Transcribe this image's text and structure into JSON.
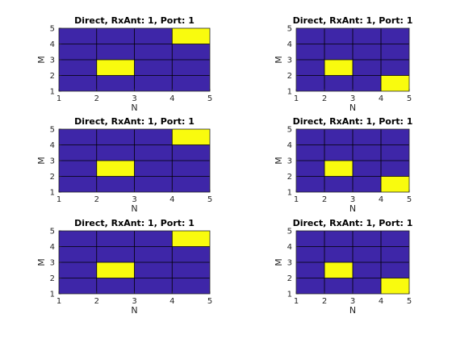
{
  "chart_data": [
    {
      "type": "heatmap",
      "title": "Direct, RxAnt: 1, Port: 1",
      "xlabel": "N",
      "ylabel": "M",
      "xlim": [
        1,
        5
      ],
      "ylim": [
        1,
        5
      ],
      "x_ticks": [
        "1",
        "2",
        "3",
        "4",
        "5"
      ],
      "y_ticks": [
        "1",
        "2",
        "3",
        "4",
        "5"
      ],
      "colors": {
        "low": "#3e26a8",
        "high": "#f9fb0e",
        "grid": "#000000"
      },
      "highlighted_cells": [
        {
          "n": [
            4,
            5
          ],
          "m": [
            4,
            5
          ]
        },
        {
          "n": [
            2,
            3
          ],
          "m": [
            2,
            3
          ]
        }
      ]
    },
    {
      "type": "heatmap",
      "title": "Direct, RxAnt: 1, Port: 1",
      "xlabel": "N",
      "ylabel": "M",
      "xlim": [
        1,
        5
      ],
      "ylim": [
        1,
        5
      ],
      "x_ticks": [
        "1",
        "2",
        "3",
        "4",
        "5"
      ],
      "y_ticks": [
        "1",
        "2",
        "3",
        "4",
        "5"
      ],
      "colors": {
        "low": "#3e26a8",
        "high": "#f9fb0e",
        "grid": "#000000"
      },
      "highlighted_cells": [
        {
          "n": [
            2,
            3
          ],
          "m": [
            2,
            3
          ]
        },
        {
          "n": [
            4,
            5
          ],
          "m": [
            1,
            2
          ]
        }
      ]
    },
    {
      "type": "heatmap",
      "title": "Direct, RxAnt: 1, Port: 1",
      "xlabel": "N",
      "ylabel": "M",
      "xlim": [
        1,
        5
      ],
      "ylim": [
        1,
        5
      ],
      "x_ticks": [
        "1",
        "2",
        "3",
        "4",
        "5"
      ],
      "y_ticks": [
        "1",
        "2",
        "3",
        "4",
        "5"
      ],
      "colors": {
        "low": "#3e26a8",
        "high": "#f9fb0e",
        "grid": "#000000"
      },
      "highlighted_cells": [
        {
          "n": [
            4,
            5
          ],
          "m": [
            4,
            5
          ]
        },
        {
          "n": [
            2,
            3
          ],
          "m": [
            2,
            3
          ]
        }
      ]
    },
    {
      "type": "heatmap",
      "title": "Direct, RxAnt: 1, Port: 1",
      "xlabel": "N",
      "ylabel": "M",
      "xlim": [
        1,
        5
      ],
      "ylim": [
        1,
        5
      ],
      "x_ticks": [
        "1",
        "2",
        "3",
        "4",
        "5"
      ],
      "y_ticks": [
        "1",
        "2",
        "3",
        "4",
        "5"
      ],
      "colors": {
        "low": "#3e26a8",
        "high": "#f9fb0e",
        "grid": "#000000"
      },
      "highlighted_cells": [
        {
          "n": [
            2,
            3
          ],
          "m": [
            2,
            3
          ]
        },
        {
          "n": [
            4,
            5
          ],
          "m": [
            1,
            2
          ]
        }
      ]
    },
    {
      "type": "heatmap",
      "title": "Direct, RxAnt: 1, Port: 1",
      "xlabel": "N",
      "ylabel": "M",
      "xlim": [
        1,
        5
      ],
      "ylim": [
        1,
        5
      ],
      "x_ticks": [
        "1",
        "2",
        "3",
        "4",
        "5"
      ],
      "y_ticks": [
        "1",
        "2",
        "3",
        "4",
        "5"
      ],
      "colors": {
        "low": "#3e26a8",
        "high": "#f9fb0e",
        "grid": "#000000"
      },
      "highlighted_cells": [
        {
          "n": [
            4,
            5
          ],
          "m": [
            4,
            5
          ]
        },
        {
          "n": [
            2,
            3
          ],
          "m": [
            2,
            3
          ]
        }
      ]
    },
    {
      "type": "heatmap",
      "title": "Direct, RxAnt: 1, Port: 1",
      "xlabel": "N",
      "ylabel": "M",
      "xlim": [
        1,
        5
      ],
      "ylim": [
        1,
        5
      ],
      "x_ticks": [
        "1",
        "2",
        "3",
        "4",
        "5"
      ],
      "y_ticks": [
        "1",
        "2",
        "3",
        "4",
        "5"
      ],
      "colors": {
        "low": "#3e26a8",
        "high": "#f9fb0e",
        "grid": "#000000"
      },
      "highlighted_cells": [
        {
          "n": [
            2,
            3
          ],
          "m": [
            2,
            3
          ]
        },
        {
          "n": [
            4,
            5
          ],
          "m": [
            1,
            2
          ]
        }
      ]
    }
  ]
}
